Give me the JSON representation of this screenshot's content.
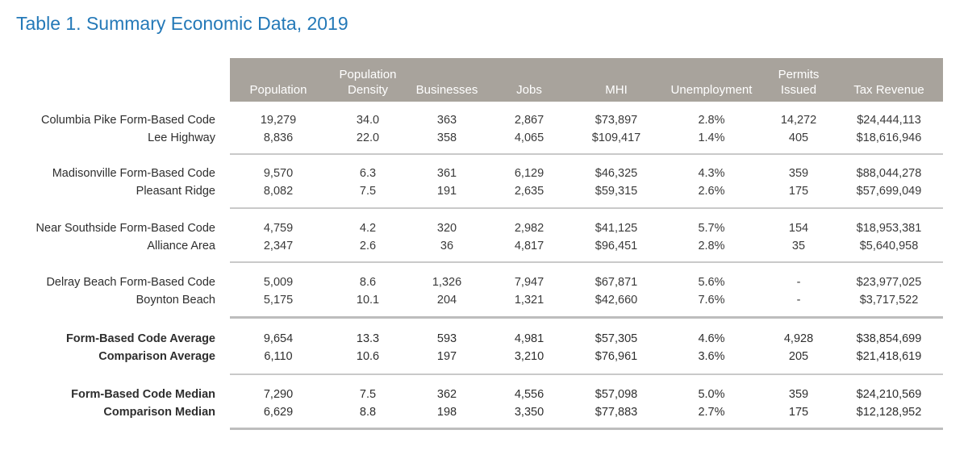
{
  "title": "Table 1. Summary Economic Data, 2019",
  "headers": [
    {
      "line1": "",
      "line2": "Population"
    },
    {
      "line1": "Population",
      "line2": "Density"
    },
    {
      "line1": "",
      "line2": "Businesses"
    },
    {
      "line1": "",
      "line2": "Jobs"
    },
    {
      "line1": "",
      "line2": "MHI"
    },
    {
      "line1": "",
      "line2": "Unemployment"
    },
    {
      "line1": "Permits",
      "line2": "Issued"
    },
    {
      "line1": "",
      "line2": "Tax Revenue"
    }
  ],
  "groups": [
    {
      "rows": [
        {
          "label": "Columbia Pike Form-Based Code",
          "values": [
            "19,279",
            "34.0",
            "363",
            "2,867",
            "$73,897",
            "2.8%",
            "14,272",
            "$24,444,113"
          ]
        },
        {
          "label": "Lee Highway",
          "values": [
            "8,836",
            "22.0",
            "358",
            "4,065",
            "$109,417",
            "1.4%",
            "405",
            "$18,616,946"
          ]
        }
      ]
    },
    {
      "rows": [
        {
          "label": "Madisonville Form-Based Code",
          "values": [
            "9,570",
            "6.3",
            "361",
            "6,129",
            "$46,325",
            "4.3%",
            "359",
            "$88,044,278"
          ]
        },
        {
          "label": "Pleasant Ridge",
          "values": [
            "8,082",
            "7.5",
            "191",
            "2,635",
            "$59,315",
            "2.6%",
            "175",
            "$57,699,049"
          ]
        }
      ]
    },
    {
      "rows": [
        {
          "label": "Near Southside Form-Based Code",
          "values": [
            "4,759",
            "4.2",
            "320",
            "2,982",
            "$41,125",
            "5.7%",
            "154",
            "$18,953,381"
          ]
        },
        {
          "label": "Alliance Area",
          "values": [
            "2,347",
            "2.6",
            "36",
            "4,817",
            "$96,451",
            "2.8%",
            "35",
            "$5,640,958"
          ]
        }
      ]
    },
    {
      "rows": [
        {
          "label": "Delray Beach Form-Based Code",
          "values": [
            "5,009",
            "8.6",
            "1,326",
            "7,947",
            "$67,871",
            "5.6%",
            "-",
            "$23,977,025"
          ]
        },
        {
          "label": "Boynton Beach",
          "values": [
            "5,175",
            "10.1",
            "204",
            "1,321",
            "$42,660",
            "7.6%",
            "-",
            "$3,717,522"
          ]
        }
      ]
    },
    {
      "rows": [
        {
          "label": "Form-Based Code Average",
          "values": [
            "9,654",
            "13.3",
            "593",
            "4,981",
            "$57,305",
            "4.6%",
            "4,928",
            "$38,854,699"
          ]
        },
        {
          "label": "Comparison Average",
          "values": [
            "6,110",
            "10.6",
            "197",
            "3,210",
            "$76,961",
            "3.6%",
            "205",
            "$21,418,619"
          ]
        }
      ]
    },
    {
      "rows": [
        {
          "label": "Form-Based Code Median",
          "values": [
            "7,290",
            "7.5",
            "362",
            "4,556",
            "$57,098",
            "5.0%",
            "359",
            "$24,210,569"
          ]
        },
        {
          "label": "Comparison Median",
          "values": [
            "6,629",
            "8.8",
            "198",
            "3,350",
            "$77,883",
            "2.7%",
            "175",
            "$12,128,952"
          ]
        }
      ]
    }
  ]
}
